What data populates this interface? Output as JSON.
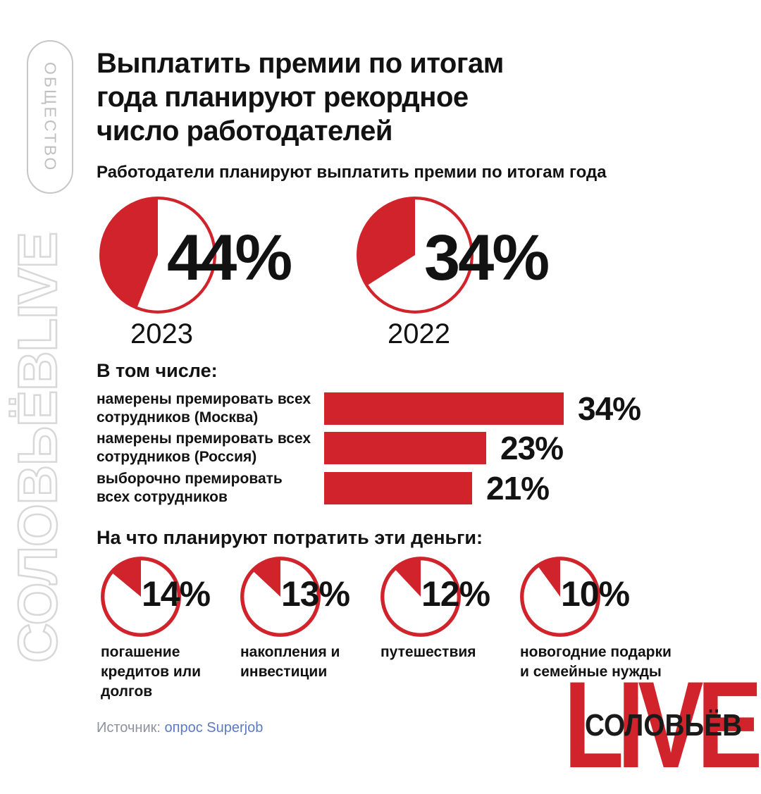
{
  "accent_red": "#d1232b",
  "badge": {
    "label": "ОБЩЕСТВО"
  },
  "watermark": {
    "label": "СОЛОВЬЁВLIVE"
  },
  "header": {
    "title": "Выплатить премии по итогам\nгода планируют рекордное\nчисло работодателей",
    "subtitle": "Работодатели планируют выплатить премии по итогам года"
  },
  "sections": {
    "including_heading": "В том числе:",
    "spend_heading": "На что планируют потратить эти деньги:"
  },
  "source": {
    "prefix": "Источник:",
    "link_text": "опрос Superjob"
  },
  "logo": {
    "live": "LIVE",
    "name": "СОЛОВЬЁВ"
  },
  "chart_data": [
    {
      "type": "pie",
      "title": "Работодатели планируют выплатить премии по итогам года",
      "unit": "%",
      "style": "single-slice, red wedge starts at 12 o'clock and sweeps counterclockwise, white remainder with red ring",
      "items": [
        {
          "label": "2023",
          "value": 44,
          "display": "44%"
        },
        {
          "label": "2022",
          "value": 34,
          "display": "34%"
        }
      ]
    },
    {
      "type": "bar",
      "title": "В том числе:",
      "orientation": "horizontal",
      "unit": "%",
      "xlim": [
        0,
        40
      ],
      "categories": [
        "намерены премировать всех\nсотрудников (Москва)",
        "намерены премировать всех\nсотрудников (Россия)",
        "выборочно премировать\nвсех сотрудников"
      ],
      "values": [
        34,
        23,
        21
      ],
      "displays": [
        "34%",
        "23%",
        "21%"
      ]
    },
    {
      "type": "pie",
      "title": "На что планируют потратить эти деньги:",
      "unit": "%",
      "style": "single-slice, red wedge starts at 12 o'clock and sweeps counterclockwise, white remainder with red ring",
      "items": [
        {
          "label": "погашение\nкредитов или\nдолгов",
          "value": 14,
          "display": "14%"
        },
        {
          "label": "накопления и\nинвестиции",
          "value": 13,
          "display": "13%"
        },
        {
          "label": "путешествия",
          "value": 12,
          "display": "12%"
        },
        {
          "label": "новогодние подарки\nи семейные нужды",
          "value": 10,
          "display": "10%"
        }
      ]
    }
  ]
}
